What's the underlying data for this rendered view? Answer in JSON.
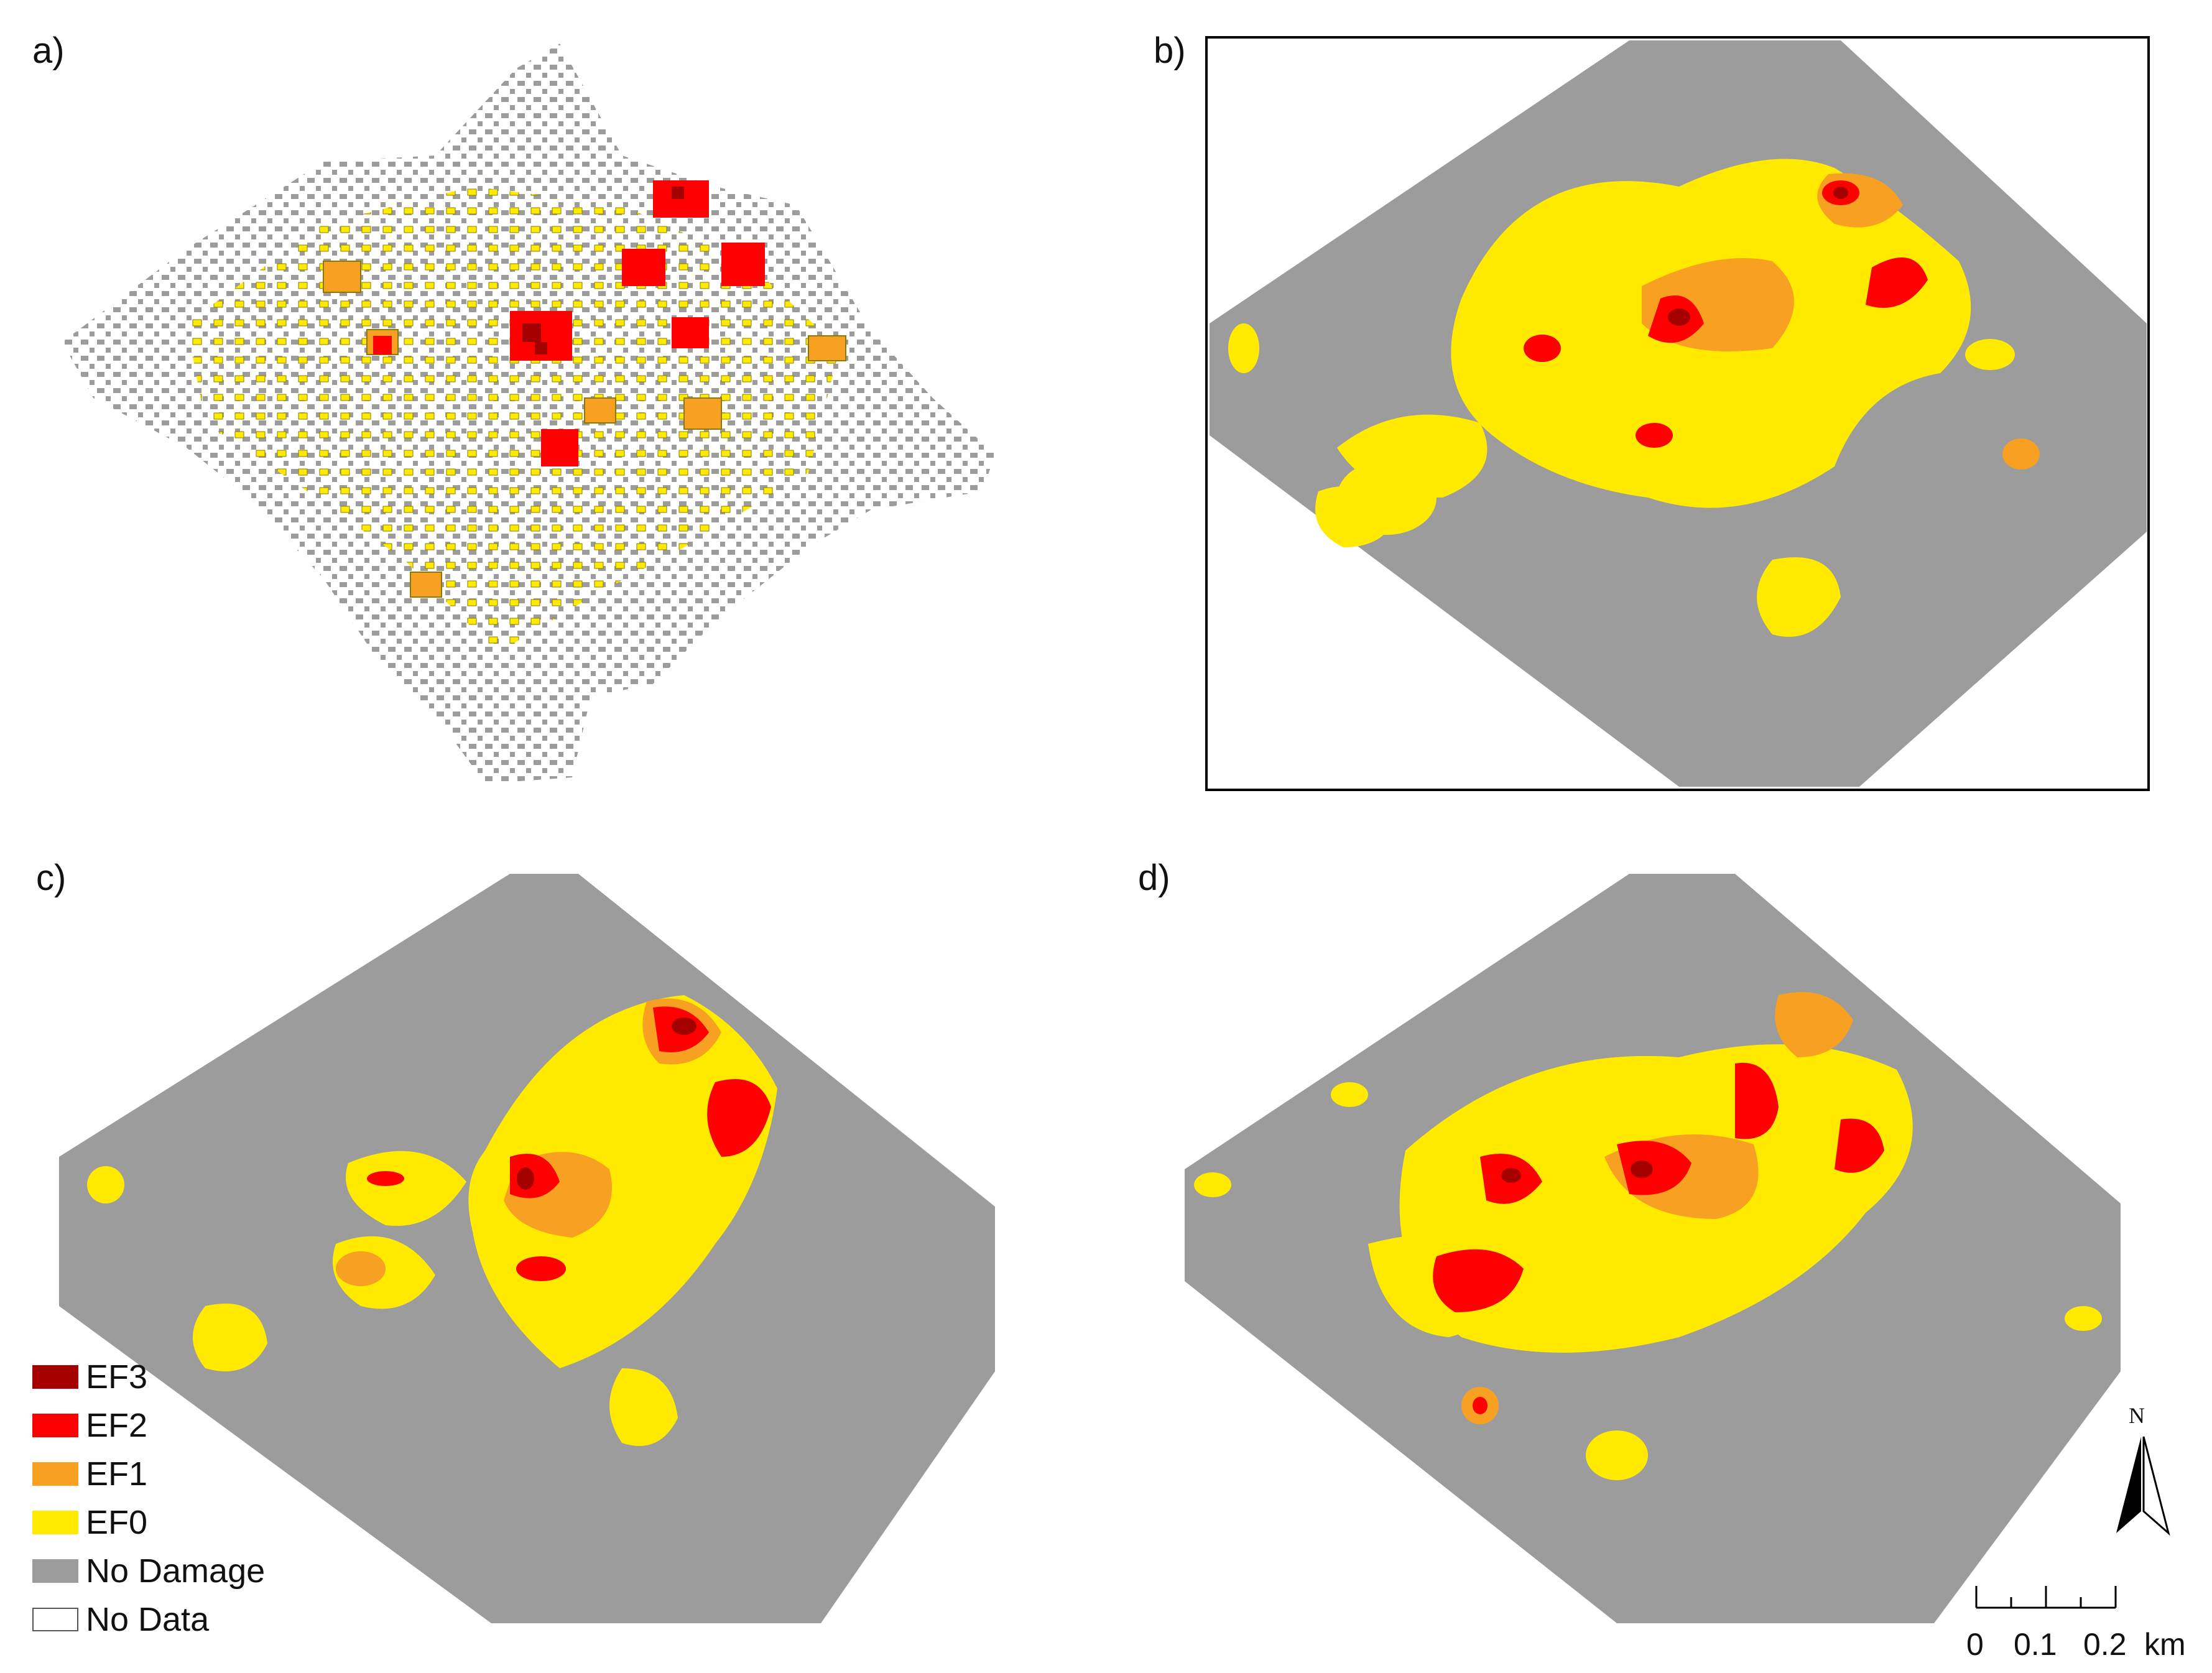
{
  "panels": [
    {
      "label": "a)"
    },
    {
      "label": "b)"
    },
    {
      "label": "c)"
    },
    {
      "label": "d)"
    }
  ],
  "legend": {
    "items": [
      {
        "label": "EF3",
        "color": "#a50000"
      },
      {
        "label": "EF2",
        "color": "#ff0000"
      },
      {
        "label": "EF1",
        "color": "#f7a021"
      },
      {
        "label": "EF0",
        "color": "#ffea00"
      },
      {
        "label": "No Damage",
        "color": "#9c9c9c"
      },
      {
        "label": "No Data",
        "color": "#ffffff"
      }
    ]
  },
  "north_arrow": {
    "label": "N"
  },
  "scale_bar": {
    "ticks": [
      "0",
      "0.1",
      "0.2"
    ],
    "unit": "km"
  }
}
